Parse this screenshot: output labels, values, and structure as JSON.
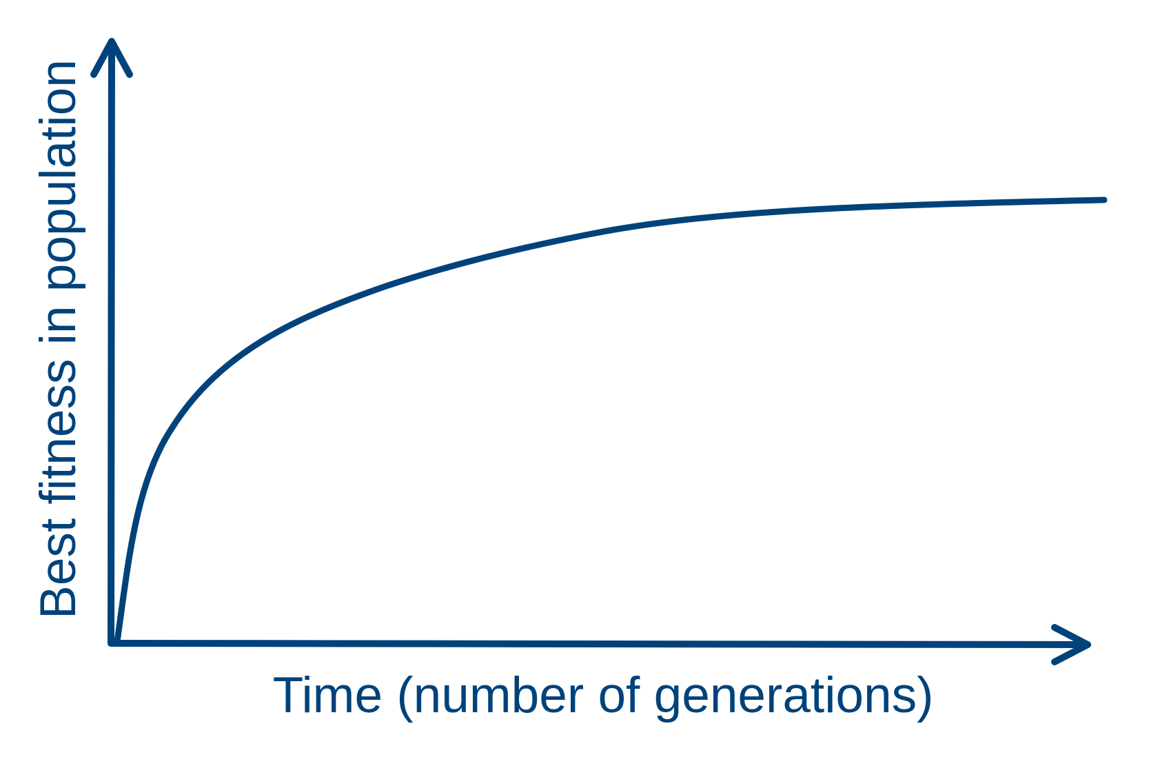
{
  "colors": {
    "ink": "#00427a",
    "background": "#ffffff"
  },
  "labels": {
    "y_axis": "Best fitness in population",
    "x_axis": "Time (number of generations)"
  },
  "curve": {
    "shape": "concave saturating growth"
  }
}
